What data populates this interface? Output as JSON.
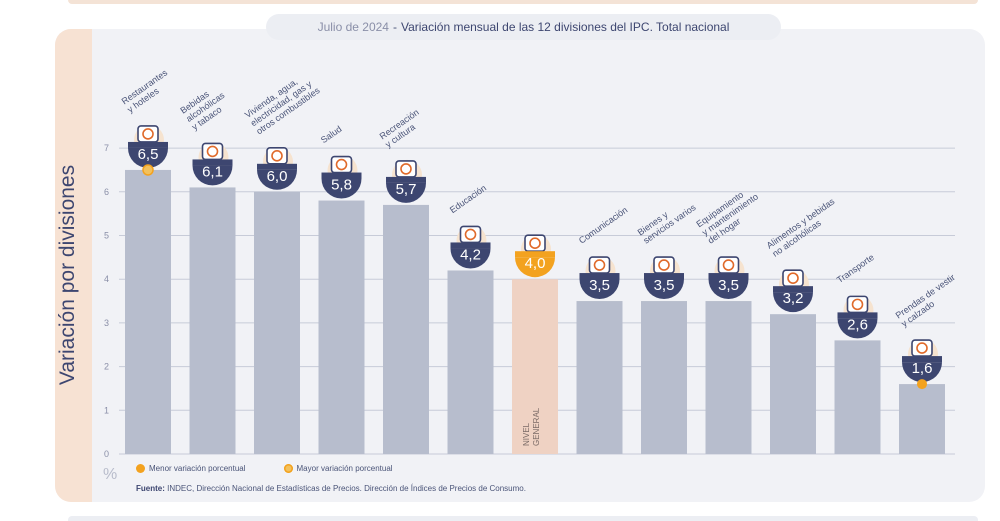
{
  "title": {
    "date": "Julio de 2024",
    "separator": "-",
    "main": "Variación mensual de las 12 divisiones del IPC. Total nacional"
  },
  "colors": {
    "bar": "#b7bdcd",
    "bar_general": "#efd2c3",
    "bubble": "#3d4670",
    "bubble_general": "#f3a21f",
    "accent_dot": "#f3a21f",
    "grid": "#c7cbd8",
    "text_dark": "#3d4670"
  },
  "y_axis_label": "Variación por divisiones",
  "unit_label": "%",
  "legend": {
    "min_label": "Menor variación porcentual",
    "max_label": "Mayor variación porcentual"
  },
  "source": {
    "prefix": "Fuente:",
    "text": "INDEC, Dirección Nacional de Estadísticas de Precios. Dirección de Índices de Precios de Consumo."
  },
  "chart_data": {
    "type": "bar",
    "title": "Variación mensual de las 12 divisiones del IPC. Total nacional",
    "ylabel": "Variación por divisiones",
    "ylim": [
      0,
      7
    ],
    "yticks": [
      0,
      1,
      2,
      3,
      4,
      5,
      6,
      7
    ],
    "grid": true,
    "categories": [
      "Restaurantes y hoteles",
      "Bebidas alcohólicas y tabaco",
      "Vivienda, agua, electricidad, gas y otros combustibles",
      "Salud",
      "Recreación y cultura",
      "Educación",
      "NIVEL GENERAL",
      "Comunicación",
      "Bienes y servicios varios",
      "Equipamiento y mantenimiento del hogar",
      "Alimentos y bebidas no alcohólicas",
      "Transporte",
      "Prendas de vestir y calzado"
    ],
    "label_lines": [
      [
        "Restaurantes",
        "y hoteles"
      ],
      [
        "Bebidas",
        "alcohólicas",
        "y tabaco"
      ],
      [
        "Vivienda, agua,",
        "electricidad, gas y",
        "otros combustibles"
      ],
      [
        "Salud"
      ],
      [
        "Recreación",
        "y cultura"
      ],
      [
        "Educación"
      ],
      [
        "NIVEL",
        "GENERAL"
      ],
      [
        "Comunicación"
      ],
      [
        "Bienes y",
        "servicios varios"
      ],
      [
        "Equipamiento",
        "y mantenimiento",
        "del hogar"
      ],
      [
        "Alimentos y bebidas",
        "no alcohólicas"
      ],
      [
        "Transporte"
      ],
      [
        "Prendas de vestir",
        "y calzado"
      ]
    ],
    "values": [
      6.5,
      6.1,
      6.0,
      5.8,
      5.7,
      4.2,
      4.0,
      3.5,
      3.5,
      3.5,
      3.2,
      2.6,
      1.6
    ],
    "value_labels": [
      "6,5",
      "6,1",
      "6,0",
      "5,8",
      "5,7",
      "4,2",
      "4,0",
      "3,5",
      "3,5",
      "3,5",
      "3,2",
      "2,6",
      "1,6"
    ],
    "general_index": 6,
    "max_marker_index": 0,
    "min_marker_index": 12,
    "icons": [
      "restaurant-icon",
      "drinks-icon",
      "lightbulb-icon",
      "health-cross-icon",
      "beach-umbrella-icon",
      "books-icon",
      "shopping-basket-icon",
      "smartphone-icon",
      "comb-scissors-icon",
      "appliance-icon",
      "chicken-icon",
      "bus-car-icon",
      "clothes-icon"
    ]
  }
}
